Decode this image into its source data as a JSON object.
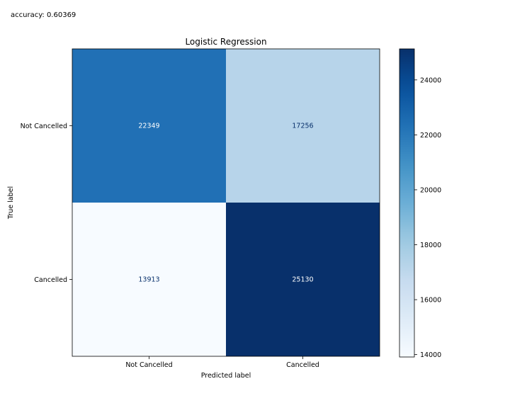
{
  "accuracy_text": "accuracy: 0.60369",
  "chart_data": {
    "type": "heatmap",
    "title": "Logistic Regression",
    "xlabel": "Predicted label",
    "ylabel": "True label",
    "x_categories": [
      "Not Cancelled",
      "Cancelled"
    ],
    "y_categories": [
      "Not Cancelled",
      "Cancelled"
    ],
    "values": [
      [
        22349,
        17256
      ],
      [
        13913,
        25130
      ]
    ],
    "colormap": "Blues",
    "colorbar": {
      "ticks": [
        14000,
        16000,
        18000,
        20000,
        22000,
        24000
      ]
    },
    "grid": false
  }
}
